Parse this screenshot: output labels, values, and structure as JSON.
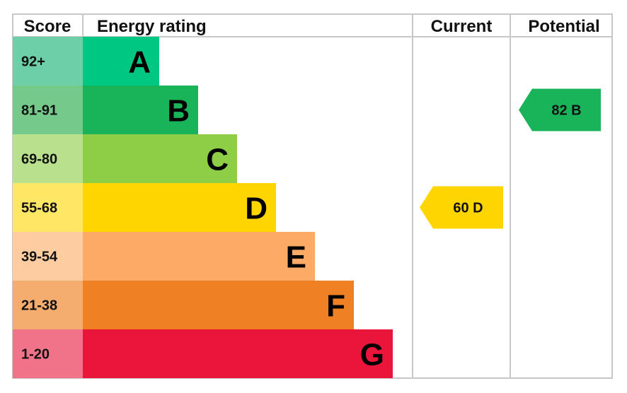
{
  "chart_data": {
    "type": "bar",
    "headers": {
      "score": "Score",
      "rating": "Energy rating",
      "current": "Current",
      "potential": "Potential"
    },
    "bands": [
      {
        "letter": "A",
        "range": "92+",
        "color": "#00c781",
        "tint": "#6ccfa8"
      },
      {
        "letter": "B",
        "range": "81-91",
        "color": "#19b459",
        "tint": "#75c98a"
      },
      {
        "letter": "C",
        "range": "69-80",
        "color": "#8dce46",
        "tint": "#b9e08c"
      },
      {
        "letter": "D",
        "range": "55-68",
        "color": "#ffd500",
        "tint": "#ffe766"
      },
      {
        "letter": "E",
        "range": "39-54",
        "color": "#fcaa65",
        "tint": "#fdcca1"
      },
      {
        "letter": "F",
        "range": "21-38",
        "color": "#ef8023",
        "tint": "#f4ac6f"
      },
      {
        "letter": "G",
        "range": "1-20",
        "color": "#e9153b",
        "tint": "#f07389"
      }
    ],
    "current": {
      "value": 60,
      "band": "D",
      "label": "60 D",
      "color": "#ffd500"
    },
    "potential": {
      "value": 82,
      "band": "B",
      "label": "82 B",
      "color": "#19b459"
    }
  }
}
